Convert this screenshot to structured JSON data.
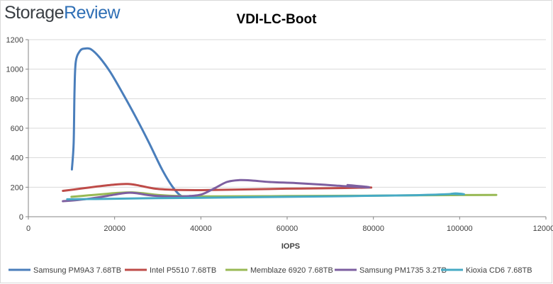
{
  "logo": {
    "part1": "Storage",
    "part2": "Review"
  },
  "chart_data": {
    "type": "line",
    "title": "VDI-LC-Boot",
    "xlabel": "IOPS",
    "ylabel": "",
    "xlim": [
      0,
      120000
    ],
    "ylim": [
      0,
      1200
    ],
    "xticks": [
      0,
      20000,
      40000,
      60000,
      80000,
      100000,
      120000
    ],
    "xtick_labels": [
      "0",
      "20000",
      "40000",
      "60000",
      "80000",
      "100000",
      "120000"
    ],
    "yticks": [
      0,
      200,
      400,
      600,
      800,
      1000,
      1200
    ],
    "ytick_labels": [
      "0",
      "200",
      "400",
      "600",
      "800",
      "1000",
      "1200"
    ],
    "grid": {
      "horizontal": true,
      "vertical": false
    },
    "legend_position": "bottom",
    "series": [
      {
        "name": "Samsung PM9A3 7.68TB",
        "color": "#4a7ebb",
        "x": [
          10100,
          10500,
          10700,
          11000,
          12000,
          13200,
          14500,
          16500,
          19000,
          22000,
          25000,
          28000,
          31000,
          33500,
          35500,
          37500
        ],
        "y": [
          320,
          500,
          850,
          1050,
          1125,
          1140,
          1135,
          1080,
          980,
          830,
          670,
          500,
          320,
          200,
          140,
          140
        ]
      },
      {
        "name": "Intel P5510 7.68TB",
        "color": "#be4b48",
        "x": [
          8000,
          12000,
          16000,
          20000,
          23000,
          25000,
          27500,
          30000,
          34000,
          40000,
          50000,
          60000,
          70000,
          79500
        ],
        "y": [
          175,
          190,
          205,
          218,
          222,
          215,
          200,
          188,
          182,
          180,
          185,
          190,
          193,
          198
        ]
      },
      {
        "name": "Memblaze 6920 7.68TB",
        "color": "#98b954",
        "x": [
          10000,
          14000,
          18000,
          21000,
          24000,
          27000,
          30000,
          35000,
          45000,
          60000,
          75000,
          90000,
          100000,
          108500
        ],
        "y": [
          135,
          145,
          155,
          162,
          165,
          158,
          148,
          140,
          138,
          140,
          142,
          145,
          147,
          148
        ]
      },
      {
        "name": "Samsung PM1735 3.2TB",
        "color": "#7d5fa0",
        "x": [
          8000,
          12000,
          16000,
          20000,
          23000,
          25000,
          27000,
          30000,
          36000,
          40000,
          43000,
          46000,
          49000,
          52000,
          56000,
          62000,
          68000,
          72000,
          76000,
          79000,
          74000
        ],
        "y": [
          105,
          115,
          130,
          150,
          162,
          160,
          150,
          140,
          138,
          150,
          190,
          235,
          248,
          245,
          235,
          228,
          218,
          210,
          203,
          200,
          215
        ]
      },
      {
        "name": "Kioxia CD6 7.68TB",
        "color": "#46aac4",
        "x": [
          9000,
          20000,
          30000,
          40000,
          50000,
          60000,
          70000,
          80000,
          90000,
          97000,
          99000,
          101000,
          98000
        ],
        "y": [
          118,
          122,
          126,
          128,
          132,
          135,
          138,
          142,
          146,
          152,
          158,
          152,
          155
        ]
      }
    ]
  }
}
